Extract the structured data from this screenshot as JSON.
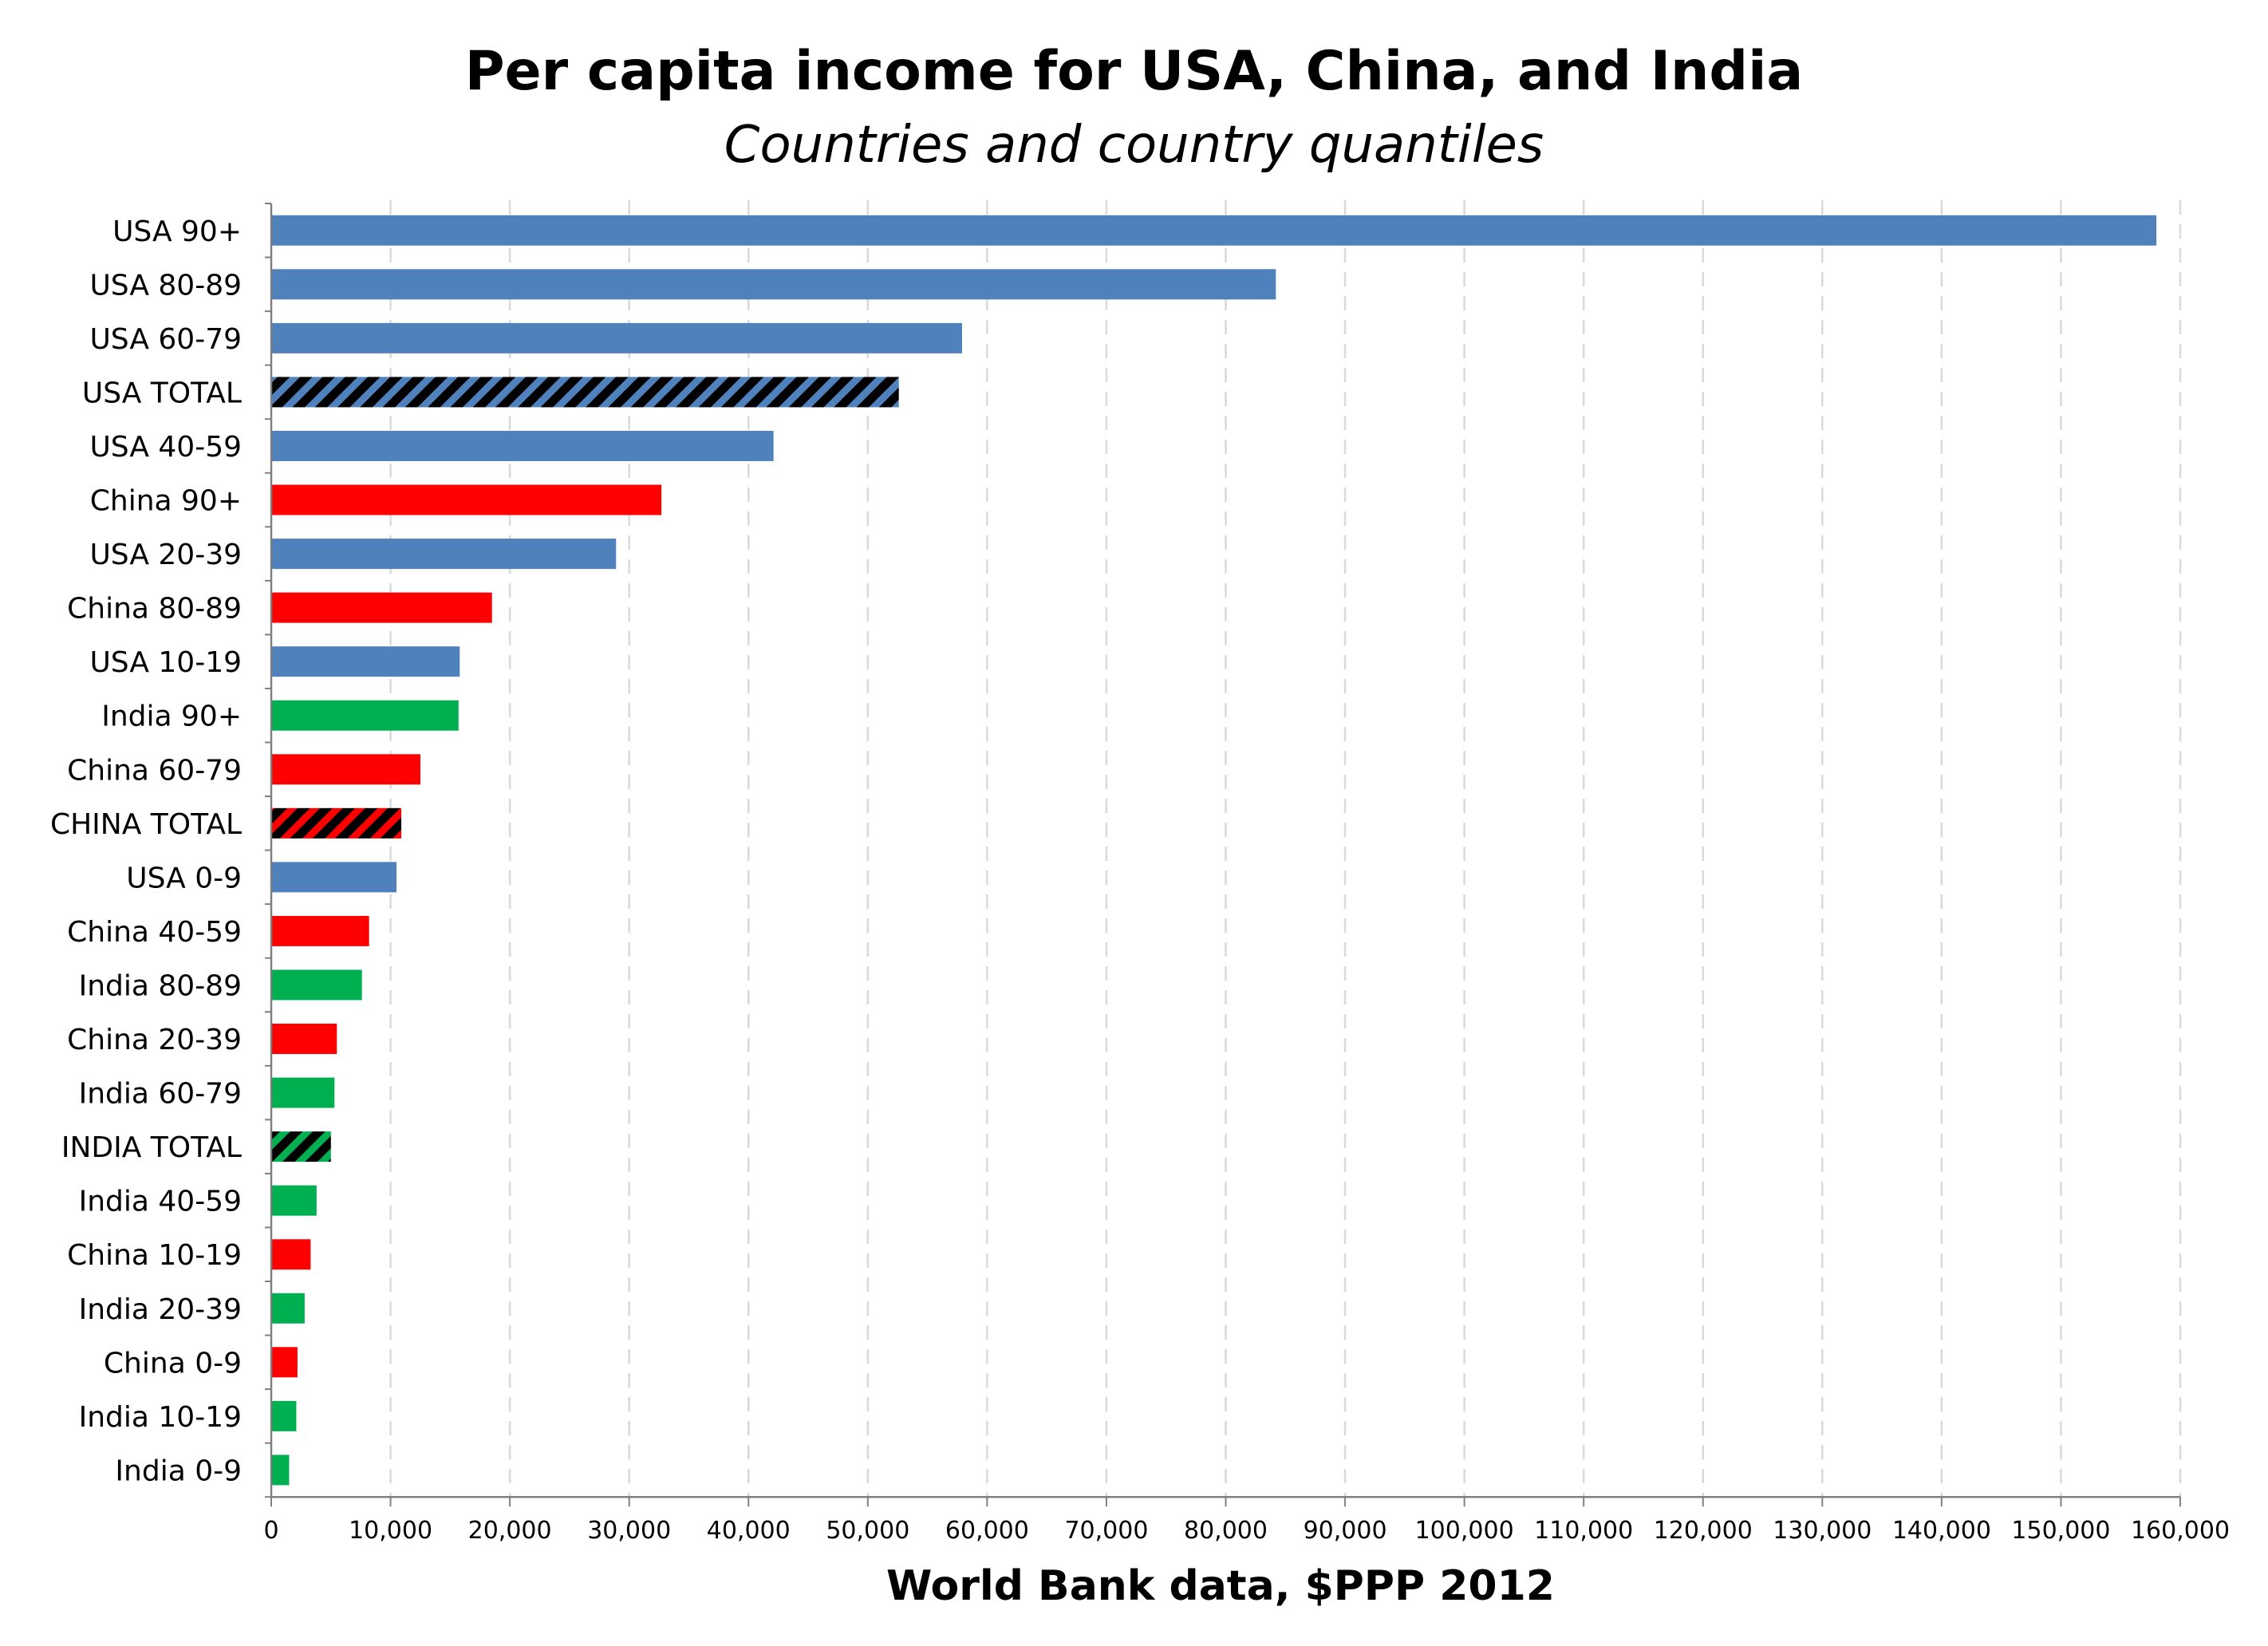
{
  "chart_data": {
    "type": "bar",
    "orientation": "horizontal",
    "title": "Per capita income for USA, China, and India",
    "subtitle": "Countries and country quantiles",
    "xlabel": "World Bank data, $PPP 2012",
    "ylabel": "",
    "xlim": [
      0,
      160000
    ],
    "x_ticks": [
      "0",
      "10,000",
      "20,000",
      "30,000",
      "40,000",
      "50,000",
      "60,000",
      "70,000",
      "80,000",
      "90,000",
      "100,000",
      "110,000",
      "120,000",
      "130,000",
      "140,000",
      "150,000",
      "160,000"
    ],
    "grid": "vertical dashed",
    "legend": "none",
    "colors": {
      "USA": "#4f81bd",
      "China": "#ff0000",
      "India": "#00b050",
      "total_stripe": "#000000"
    },
    "bars": [
      {
        "label": "USA 90+",
        "value": 158000,
        "group": "USA",
        "total": false
      },
      {
        "label": "USA 80-89",
        "value": 84200,
        "group": "USA",
        "total": false
      },
      {
        "label": "USA 60-79",
        "value": 57900,
        "group": "USA",
        "total": false
      },
      {
        "label": "USA TOTAL",
        "value": 52600,
        "group": "USA",
        "total": true
      },
      {
        "label": "USA 40-59",
        "value": 42100,
        "group": "USA",
        "total": false
      },
      {
        "label": "China 90+",
        "value": 32700,
        "group": "China",
        "total": false
      },
      {
        "label": "USA 20-39",
        "value": 28900,
        "group": "USA",
        "total": false
      },
      {
        "label": "China 80-89",
        "value": 18500,
        "group": "China",
        "total": false
      },
      {
        "label": "USA 10-19",
        "value": 15800,
        "group": "USA",
        "total": false
      },
      {
        "label": "India 90+",
        "value": 15700,
        "group": "India",
        "total": false
      },
      {
        "label": "China 60-79",
        "value": 12500,
        "group": "China",
        "total": false
      },
      {
        "label": "CHINA TOTAL",
        "value": 10900,
        "group": "China",
        "total": true
      },
      {
        "label": "USA 0-9",
        "value": 10500,
        "group": "USA",
        "total": false
      },
      {
        "label": "China 40-59",
        "value": 8200,
        "group": "China",
        "total": false
      },
      {
        "label": "India 80-89",
        "value": 7600,
        "group": "India",
        "total": false
      },
      {
        "label": "China 20-39",
        "value": 5500,
        "group": "China",
        "total": false
      },
      {
        "label": "India 60-79",
        "value": 5300,
        "group": "India",
        "total": false
      },
      {
        "label": "INDIA TOTAL",
        "value": 5000,
        "group": "India",
        "total": true
      },
      {
        "label": "India 40-59",
        "value": 3800,
        "group": "India",
        "total": false
      },
      {
        "label": "China 10-19",
        "value": 3300,
        "group": "China",
        "total": false
      },
      {
        "label": "India 20-39",
        "value": 2800,
        "group": "India",
        "total": false
      },
      {
        "label": "China 0-9",
        "value": 2200,
        "group": "China",
        "total": false
      },
      {
        "label": "India 10-19",
        "value": 2100,
        "group": "India",
        "total": false
      },
      {
        "label": "India 0-9",
        "value": 1500,
        "group": "India",
        "total": false
      }
    ]
  }
}
